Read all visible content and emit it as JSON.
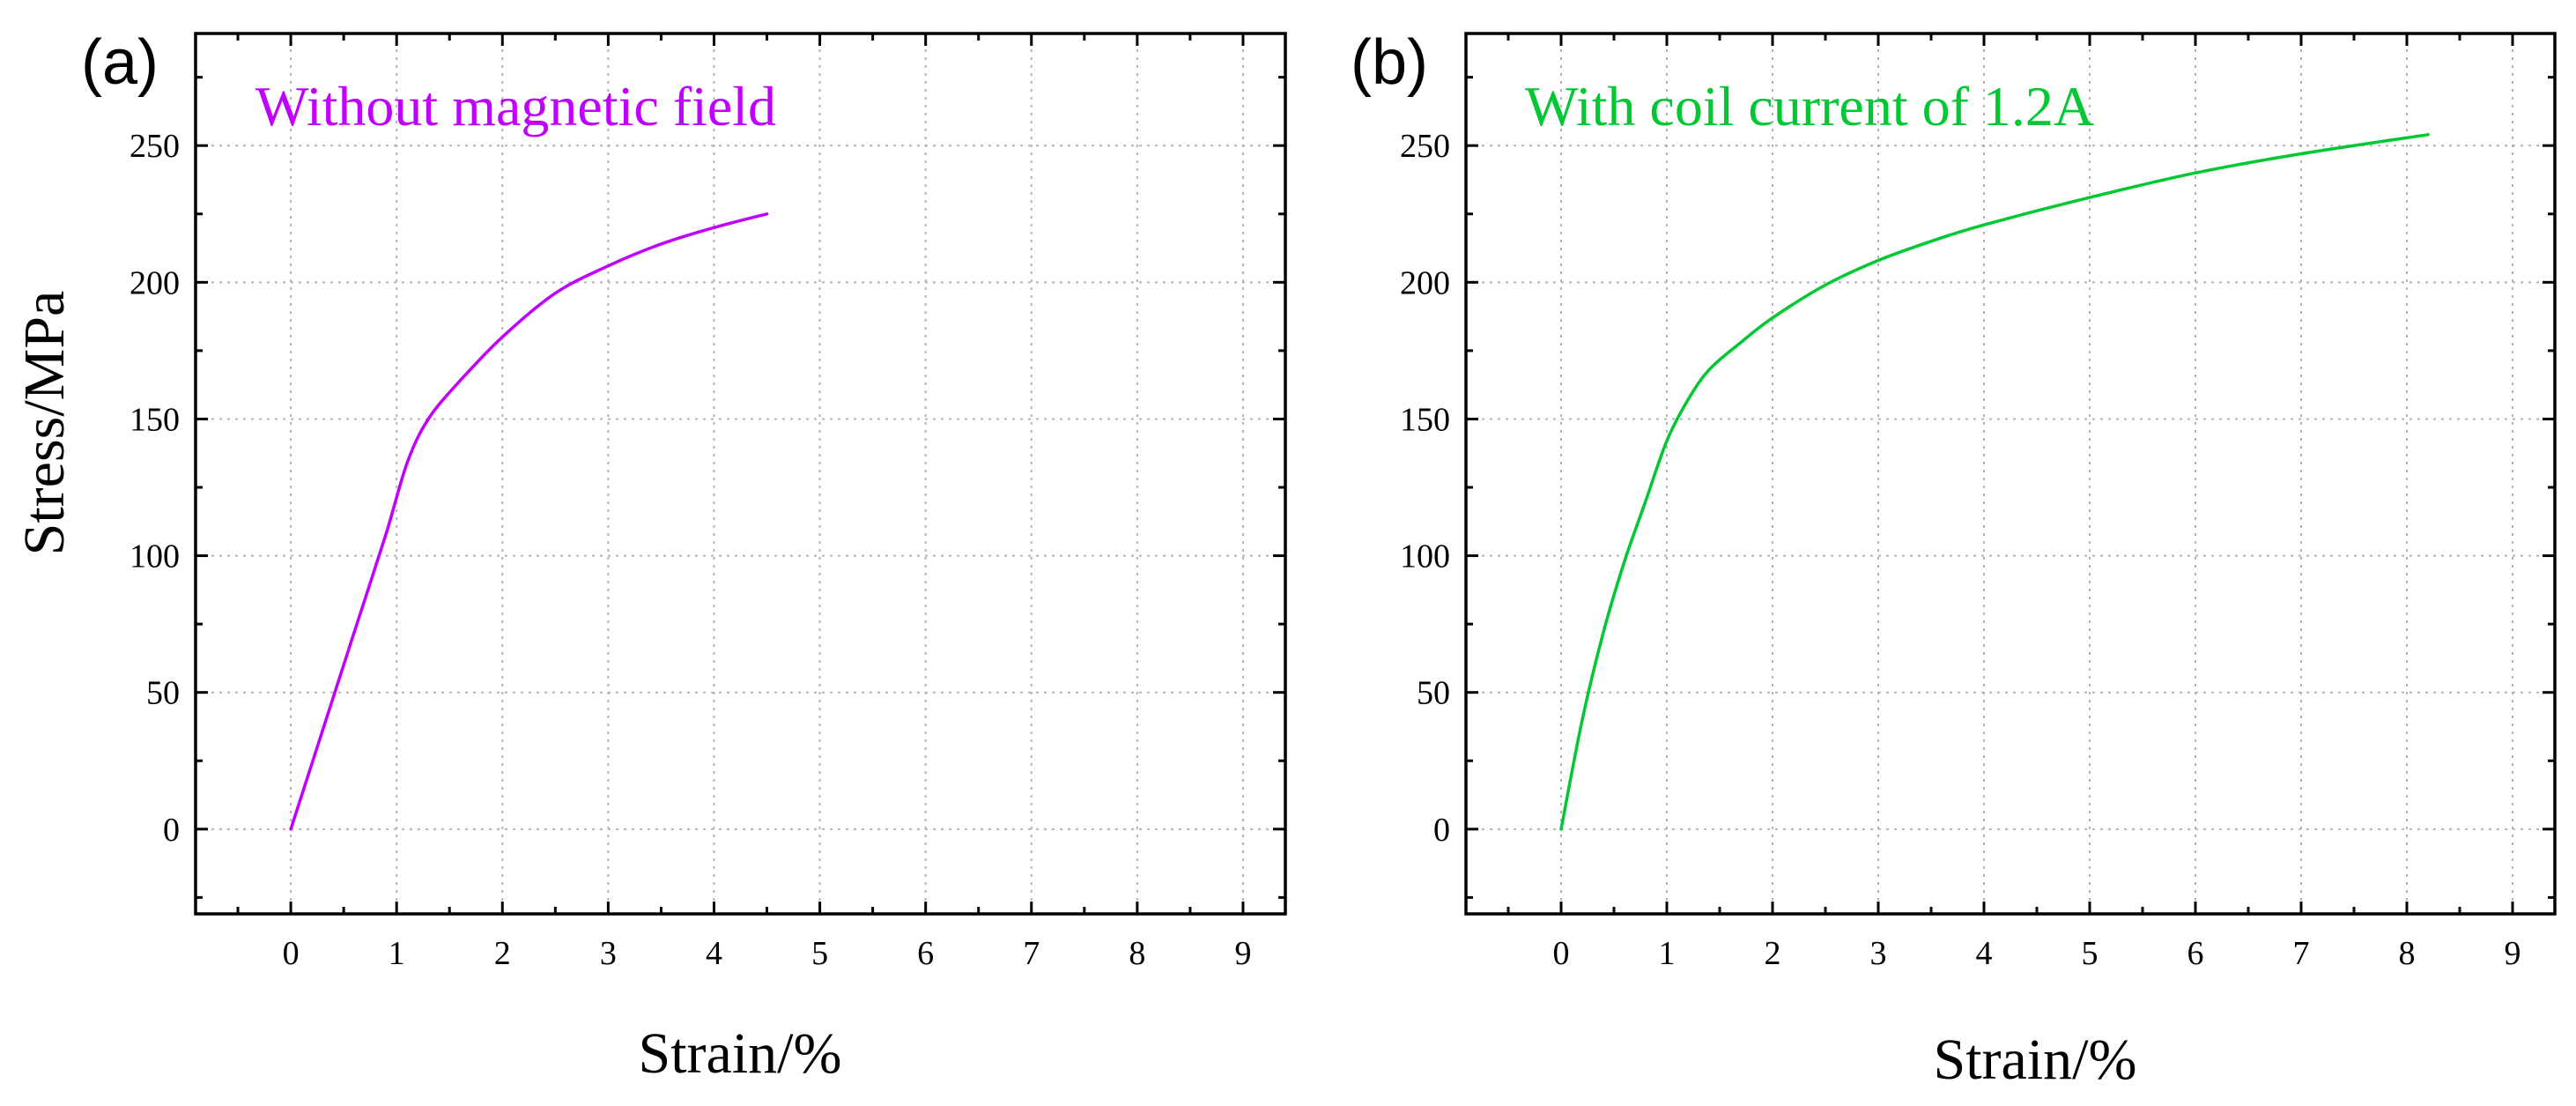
{
  "chart_data": [
    {
      "type": "line",
      "panel_label": "(a)",
      "annotation": "Without magnetic field",
      "xlabel": "Strain/%",
      "ylabel": "Stress/MPa",
      "xlim": [
        -0.9,
        9.4
      ],
      "ylim": [
        -31,
        291
      ],
      "x_ticks": [
        0,
        1,
        2,
        3,
        4,
        5,
        6,
        7,
        8,
        9
      ],
      "y_ticks": [
        0,
        50,
        100,
        150,
        200,
        250
      ],
      "grid": true,
      "series": [
        {
          "name": "Without magnetic field",
          "color": "#c000ff",
          "x": [
            0,
            0.3,
            0.6,
            0.9,
            1.1,
            1.3,
            1.6,
            2.0,
            2.5,
            3.0,
            3.5,
            4.0,
            4.5
          ],
          "values": [
            0,
            36,
            72,
            108,
            134,
            150,
            164,
            180,
            196,
            206,
            214,
            220,
            225
          ]
        }
      ]
    },
    {
      "type": "line",
      "panel_label": "(b)",
      "annotation": "With coil current of 1.2A",
      "xlabel": "Strain/%",
      "ylabel": "",
      "xlim": [
        -0.9,
        9.4
      ],
      "ylim": [
        -31,
        291
      ],
      "x_ticks": [
        0,
        1,
        2,
        3,
        4,
        5,
        6,
        7,
        8,
        9
      ],
      "y_ticks": [
        0,
        50,
        100,
        150,
        200,
        250
      ],
      "grid": true,
      "series": [
        {
          "name": "With coil current of 1.2A",
          "color": "#00c832",
          "x": [
            0,
            0.2,
            0.4,
            0.6,
            0.8,
            1.0,
            1.2,
            1.4,
            1.7,
            2.0,
            2.5,
            3.0,
            3.5,
            4.0,
            5.0,
            6.0,
            7.0,
            8.2
          ],
          "values": [
            0,
            40,
            72,
            98,
            120,
            142,
            157,
            168,
            178,
            187,
            199,
            208,
            215,
            221,
            231,
            240,
            247,
            254
          ]
        }
      ]
    }
  ]
}
